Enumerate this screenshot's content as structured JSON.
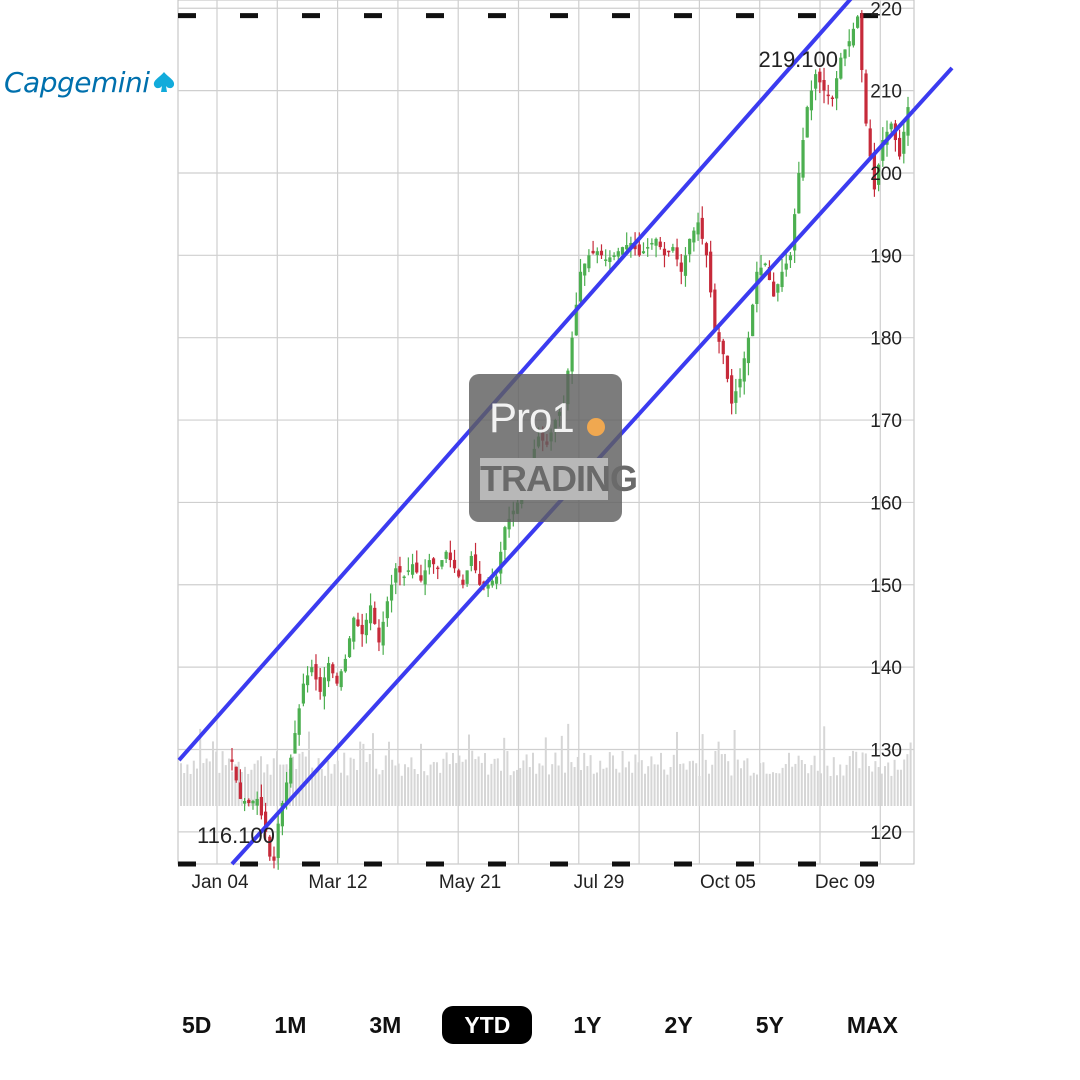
{
  "logo": {
    "text": "Capgemini"
  },
  "watermark": {
    "line1": "Pro1",
    "line2": "TRADING"
  },
  "range_buttons": [
    {
      "label": "5D",
      "active": false
    },
    {
      "label": "1M",
      "active": false
    },
    {
      "label": "3M",
      "active": false
    },
    {
      "label": "YTD",
      "active": true
    },
    {
      "label": "1Y",
      "active": false
    },
    {
      "label": "2Y",
      "active": false
    },
    {
      "label": "5Y",
      "active": false
    },
    {
      "label": "MAX",
      "active": false
    }
  ],
  "chart_data": {
    "type": "candlestick",
    "ylim": [
      116.1,
      221
    ],
    "y_ticks": [
      120,
      130,
      140,
      150,
      160,
      170,
      180,
      190,
      200,
      210,
      220
    ],
    "x_ticks": [
      "Jan 04",
      "Mar 12",
      "May 21",
      "Jul 29",
      "Oct 05",
      "Dec 09"
    ],
    "grid": true,
    "y_axis_position": "right",
    "annotations": {
      "high_label": "219.100",
      "low_label": "116.100"
    },
    "range_lines": {
      "high": 219.1,
      "low": 116.1
    },
    "trend_channel": [
      {
        "from": {
          "x": "Jan 04",
          "y": 136
        },
        "to": {
          "x": "Dec 09",
          "y": 222
        }
      },
      {
        "from": {
          "x": "Jan 04",
          "y": 116.1
        },
        "to": {
          "x": "Dec 09",
          "y": 200
        }
      }
    ],
    "colors": {
      "up": "#4caf50",
      "down": "#c62a3a",
      "channel": "#3b3bf0",
      "volume": "#d6d6d6"
    },
    "price_path": [
      [
        0,
        128.5
      ],
      [
        2,
        124
      ],
      [
        4,
        123.5
      ],
      [
        6,
        124
      ],
      [
        8,
        120
      ],
      [
        9,
        117
      ],
      [
        10,
        116.5
      ],
      [
        11,
        121
      ],
      [
        13,
        126
      ],
      [
        15,
        132
      ],
      [
        17,
        138
      ],
      [
        19,
        140
      ],
      [
        21,
        137
      ],
      [
        23,
        140.5
      ],
      [
        25,
        138
      ],
      [
        27,
        141
      ],
      [
        29,
        146
      ],
      [
        31,
        144
      ],
      [
        33,
        147.5
      ],
      [
        35,
        143
      ],
      [
        37,
        148
      ],
      [
        39,
        152
      ],
      [
        41,
        151
      ],
      [
        43,
        152.5
      ],
      [
        45,
        150.5
      ],
      [
        47,
        153
      ],
      [
        49,
        152
      ],
      [
        51,
        154
      ],
      [
        53,
        152
      ],
      [
        55,
        150
      ],
      [
        57,
        153.5
      ],
      [
        59,
        150
      ],
      [
        61,
        150
      ],
      [
        63,
        151
      ],
      [
        65,
        157
      ],
      [
        67,
        159
      ],
      [
        69,
        161
      ],
      [
        71,
        165
      ],
      [
        73,
        168
      ],
      [
        75,
        167
      ],
      [
        77,
        170
      ],
      [
        79,
        172
      ],
      [
        81,
        180
      ],
      [
        83,
        188
      ],
      [
        85,
        190
      ],
      [
        87,
        190.5
      ],
      [
        89,
        189.5
      ],
      [
        91,
        190
      ],
      [
        93,
        191
      ],
      [
        95,
        191.5
      ],
      [
        97,
        190
      ],
      [
        99,
        191
      ],
      [
        101,
        192
      ],
      [
        103,
        190
      ],
      [
        105,
        191
      ],
      [
        107,
        188
      ],
      [
        109,
        192
      ],
      [
        111,
        194
      ],
      [
        113,
        190
      ],
      [
        115,
        181
      ],
      [
        117,
        178
      ],
      [
        118,
        175
      ],
      [
        119,
        172
      ],
      [
        121,
        175
      ],
      [
        123,
        180
      ],
      [
        125,
        188
      ],
      [
        127,
        189
      ],
      [
        129,
        185
      ],
      [
        131,
        188
      ],
      [
        133,
        190
      ],
      [
        135,
        200
      ],
      [
        137,
        208
      ],
      [
        139,
        212
      ],
      [
        141,
        210
      ],
      [
        143,
        209
      ],
      [
        145,
        214
      ],
      [
        147,
        216
      ],
      [
        149,
        219
      ],
      [
        151,
        206
      ],
      [
        153,
        198
      ],
      [
        155,
        204
      ],
      [
        157,
        206
      ],
      [
        159,
        202
      ],
      [
        161,
        208
      ]
    ]
  }
}
